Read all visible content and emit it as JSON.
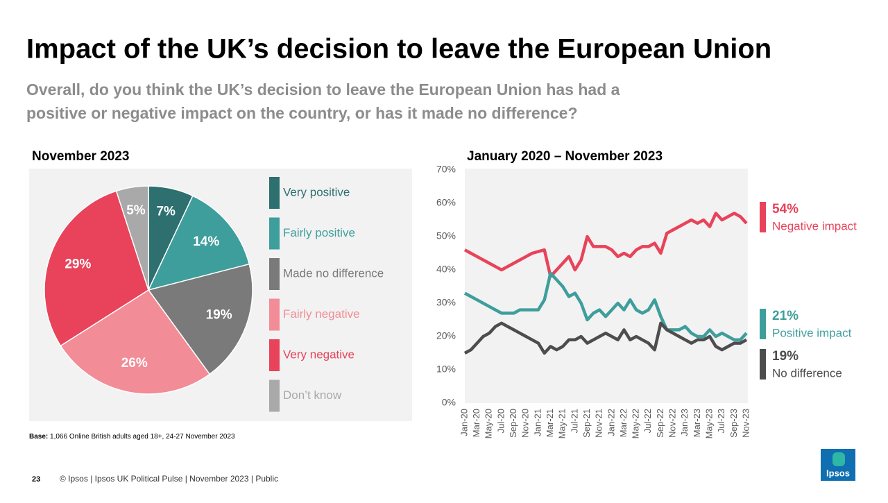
{
  "header": {
    "title": "Impact of the UK’s decision to leave the European Union",
    "subtitle_lines": [
      "Overall, do you think the UK’s decision to leave the European Union has had a",
      "positive or negative impact on the country, or has it made no difference?"
    ]
  },
  "chart_data": [
    {
      "type": "pie",
      "title": "November 2023",
      "categories": [
        "Very positive",
        "Fairly positive",
        "Made no difference",
        "Fairly negative",
        "Very negative",
        "Don’t know"
      ],
      "values": [
        7,
        14,
        19,
        26,
        29,
        5
      ],
      "value_labels": [
        "7%",
        "14%",
        "19%",
        "26%",
        "29%",
        "5%"
      ],
      "colors": [
        "#2e6f6f",
        "#3e9e9c",
        "#7a7a7a",
        "#f28c96",
        "#e8435a",
        "#a9a9a9"
      ]
    },
    {
      "type": "line",
      "title": "January 2020 – November 2023",
      "categories": [
        "Jan-20",
        null,
        "Mar-20",
        null,
        "May-20",
        null,
        "Jul-20",
        null,
        "Sep-20",
        null,
        "Nov-20",
        null,
        "Jan-21",
        null,
        "Mar-21",
        null,
        "May-21",
        null,
        "Jul-21",
        null,
        "Sep-21",
        null,
        "Nov-21",
        null,
        "Jan-22",
        null,
        "Mar-22",
        null,
        "May-22",
        null,
        "Jul-22",
        null,
        "Sep-22",
        null,
        "Nov-22",
        null,
        "Jan-23",
        null,
        "Mar-23",
        null,
        "May-23",
        null,
        "Jul-23",
        null,
        "Sep-23",
        null,
        "Nov-23"
      ],
      "ylim": [
        0,
        70
      ],
      "yticks": [
        {
          "value": 0,
          "label": "0%"
        },
        {
          "value": 10,
          "label": "10%"
        },
        {
          "value": 20,
          "label": "20%"
        },
        {
          "value": 30,
          "label": "30%"
        },
        {
          "value": 40,
          "label": "40%"
        },
        {
          "value": 50,
          "label": "50%"
        },
        {
          "value": 60,
          "label": "60%"
        },
        {
          "value": 70,
          "label": "70%"
        }
      ],
      "grid": false,
      "series": [
        {
          "name": "Negative impact",
          "color": "#e8435a",
          "end_label": "54%",
          "values": [
            46,
            45,
            44,
            43,
            42,
            41,
            40,
            41,
            42,
            43,
            44,
            45,
            45.5,
            46,
            38,
            40,
            42,
            44,
            40,
            43,
            50,
            47,
            47,
            47,
            46,
            44,
            45,
            44,
            46,
            47,
            47,
            48,
            45,
            51,
            52,
            53,
            54,
            55,
            54,
            55,
            53,
            57,
            55,
            56,
            57,
            56,
            54
          ]
        },
        {
          "name": "Positive impact",
          "color": "#3e9e9c",
          "end_label": "21%",
          "values": [
            33,
            32,
            31,
            30,
            29,
            28,
            27,
            27,
            27,
            28,
            28,
            28,
            28,
            31,
            39,
            37,
            35,
            32,
            33,
            30,
            25,
            27,
            28,
            26,
            28,
            30,
            28,
            31,
            28,
            27,
            28,
            31,
            26,
            22,
            22,
            22,
            23,
            21,
            20,
            20,
            22,
            20,
            21,
            20,
            19,
            19,
            21
          ]
        },
        {
          "name": "No difference",
          "color": "#4d4d4d",
          "end_label": "19%",
          "values": [
            15,
            16,
            18,
            20,
            21,
            23,
            24,
            23,
            22,
            21,
            20,
            19,
            18,
            15,
            17,
            16,
            17,
            19,
            19,
            20,
            18,
            19,
            20,
            21,
            20,
            19,
            22,
            19,
            20,
            19,
            18,
            16,
            24,
            22,
            21,
            20,
            19,
            18,
            19,
            19,
            20,
            17,
            16,
            17,
            18,
            18,
            19
          ]
        }
      ]
    }
  ],
  "footnote": {
    "label": "Base:",
    "text": "1,066 Online British adults aged 18+, 24-27 November 2023"
  },
  "footer": {
    "page_number": "23",
    "text": "© Ipsos | Ipsos UK Political Pulse | November 2023 | Public",
    "logo": "Ipsos"
  }
}
